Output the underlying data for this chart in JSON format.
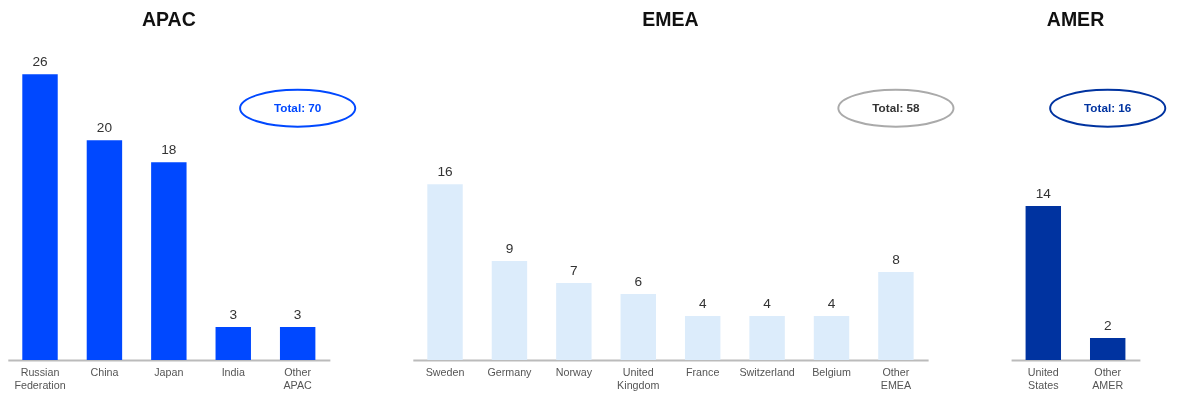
{
  "chart_data": [
    {
      "type": "bar",
      "title": "APAC",
      "categories": [
        "Russian Federation",
        "China",
        "Japan",
        "India",
        "Other APAC"
      ],
      "values": [
        26,
        20,
        18,
        3,
        3
      ],
      "color": "#0048ff",
      "data_labels": true,
      "annotations": [
        "Total: 70"
      ]
    },
    {
      "type": "bar",
      "title": "EMEA",
      "categories": [
        "Sweden",
        "Germany",
        "Norway",
        "United Kingdom",
        "France",
        "Switzerland",
        "Belgium",
        "Other EMEA"
      ],
      "values": [
        16,
        9,
        7,
        6,
        4,
        4,
        4,
        8
      ],
      "color": "#dcecfb",
      "data_labels": true,
      "annotations": [
        "Total: 58"
      ]
    },
    {
      "type": "bar",
      "title": "AMER",
      "categories": [
        "United States",
        "Other AMER"
      ],
      "values": [
        14,
        2
      ],
      "color": "#0033a0",
      "data_labels": true,
      "annotations": [
        "Total: 16"
      ]
    }
  ]
}
